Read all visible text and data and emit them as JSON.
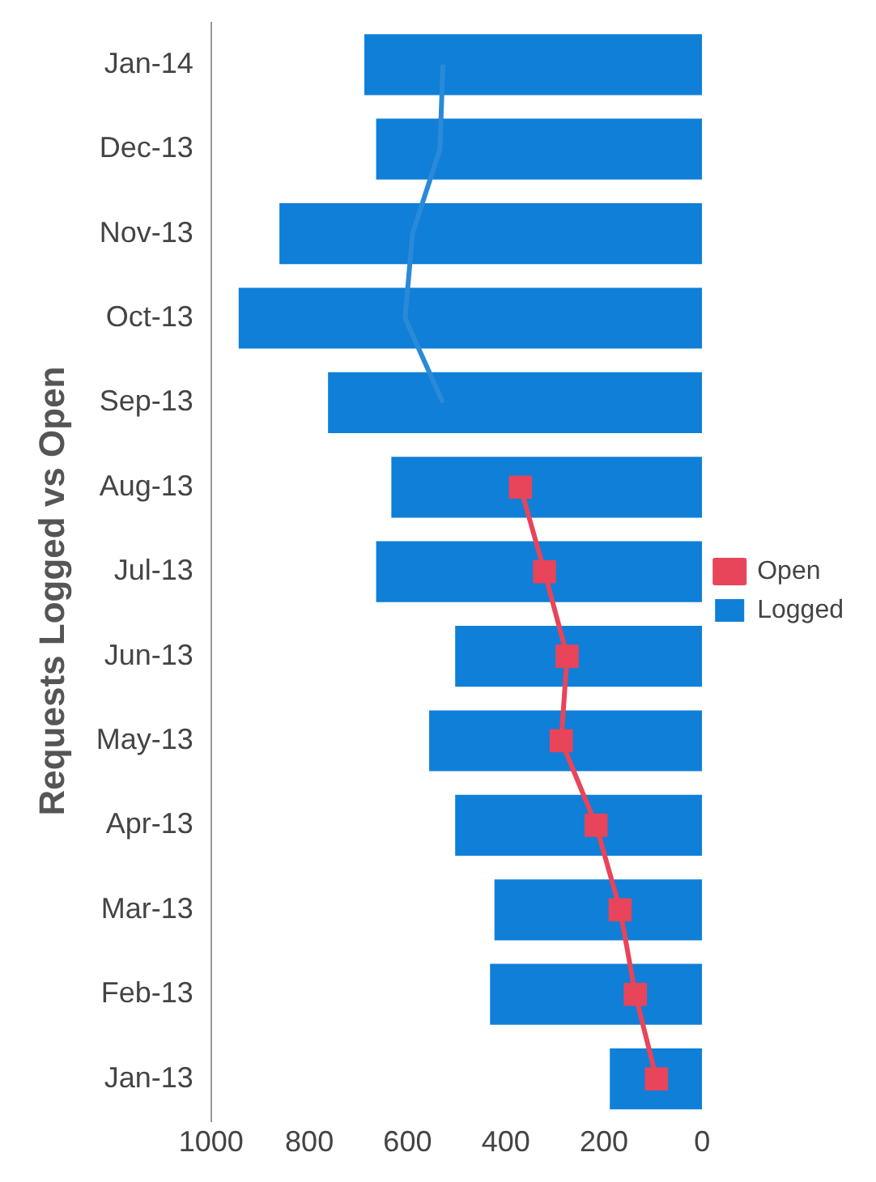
{
  "chart_data": {
    "type": "bar",
    "title": "Requests Logged vs Open",
    "orientation": "horizontal",
    "categories": [
      "Jan-14",
      "Dec-13",
      "Nov-13",
      "Oct-13",
      "Sep-13",
      "Aug-13",
      "Jul-13",
      "Jun-13",
      "May-13",
      "Apr-13",
      "Mar-13",
      "Feb-13",
      "Jan-13"
    ],
    "series": [
      {
        "name": "Logged",
        "color": "#0f7fd8",
        "values": [
          688,
          664,
          861,
          944,
          762,
          633,
          664,
          503,
          556,
          503,
          423,
          432,
          188
        ]
      },
      {
        "name": "Open",
        "type": "line",
        "color": "#e8445a",
        "marker": "square",
        "values": [
          null,
          null,
          null,
          null,
          null,
          370,
          321,
          275,
          287,
          216,
          167,
          136,
          93
        ]
      },
      {
        "type": "line",
        "color": "#2a8ad8",
        "marker": "none",
        "values": [
          528,
          534,
          590,
          605,
          528,
          null,
          null,
          null,
          null,
          null,
          null,
          null,
          null
        ]
      }
    ],
    "xlim": [
      1000,
      0
    ],
    "xticks": [
      0,
      200,
      400,
      600,
      800,
      1000
    ],
    "grid": false,
    "legend": "right"
  }
}
